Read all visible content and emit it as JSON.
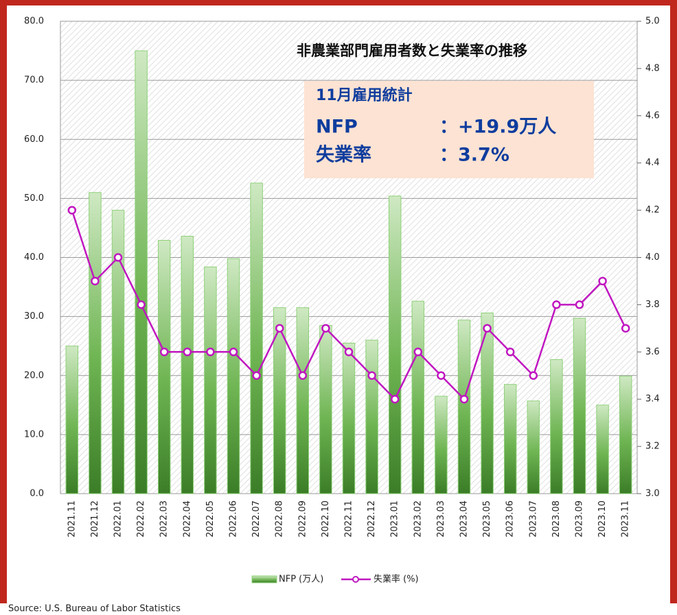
{
  "chart_data": {
    "type": "bar",
    "title": "非農業部門雇用者数と失業率の推移",
    "annotation": {
      "heading": "11月雇用統計",
      "rows": [
        [
          "NFP",
          "：+19.9万人"
        ],
        [
          "失業率",
          "：3.7%"
        ]
      ]
    },
    "source": "Source:    U.S. Bureau of Labor Statistics",
    "categories": [
      "2021.11",
      "2021.12",
      "2022.01",
      "2022.02",
      "2022.03",
      "2022.04",
      "2022.05",
      "2022.06",
      "2022.07",
      "2022.08",
      "2022.09",
      "2022.10",
      "2022.11",
      "2022.12",
      "2023.01",
      "2023.02",
      "2023.03",
      "2023.04",
      "2023.05",
      "2023.06",
      "2023.07",
      "2023.08",
      "2023.09",
      "2023.10",
      "2023.11"
    ],
    "series": [
      {
        "name": "NFP (万人)",
        "color": "#3f8a2c",
        "type": "bar",
        "values": [
          25.0,
          51.0,
          48.0,
          75.0,
          42.9,
          43.6,
          38.4,
          39.8,
          52.6,
          31.5,
          31.5,
          28.5,
          25.5,
          26.0,
          50.4,
          32.6,
          16.5,
          29.4,
          30.6,
          18.5,
          15.7,
          22.7,
          29.7,
          15.0,
          19.9
        ]
      },
      {
        "name": "失業率 (%)",
        "color": "#c016c0",
        "type": "line",
        "axis": "y2",
        "values": [
          4.2,
          3.9,
          4.0,
          3.8,
          3.6,
          3.6,
          3.6,
          3.6,
          3.5,
          3.7,
          3.5,
          3.7,
          3.6,
          3.5,
          3.4,
          3.6,
          3.5,
          3.4,
          3.7,
          3.6,
          3.5,
          3.8,
          3.8,
          3.9,
          3.7
        ]
      }
    ],
    "ylim": [
      0,
      80
    ],
    "yticks": [
      {
        "value": 0,
        "label": "0.0"
      },
      {
        "value": 10,
        "label": "10.0"
      },
      {
        "value": 20,
        "label": "20.0"
      },
      {
        "value": 30,
        "label": "30.0"
      },
      {
        "value": 40,
        "label": "40.0"
      },
      {
        "value": 50,
        "label": "50.0"
      },
      {
        "value": 60,
        "label": "60.0"
      },
      {
        "value": 70,
        "label": "70.0"
      },
      {
        "value": 80,
        "label": "80.0"
      }
    ],
    "y2lim": [
      3.0,
      5.0
    ],
    "y2ticks": [
      {
        "value": 3.0,
        "label": "3.0"
      },
      3.2,
      3.4,
      3.6,
      3.8,
      {
        "value": 4.0,
        "label": "4.0"
      },
      4.2,
      4.4,
      4.6,
      4.8,
      {
        "value": 5.0,
        "label": "5.0"
      }
    ],
    "grid": true
  }
}
